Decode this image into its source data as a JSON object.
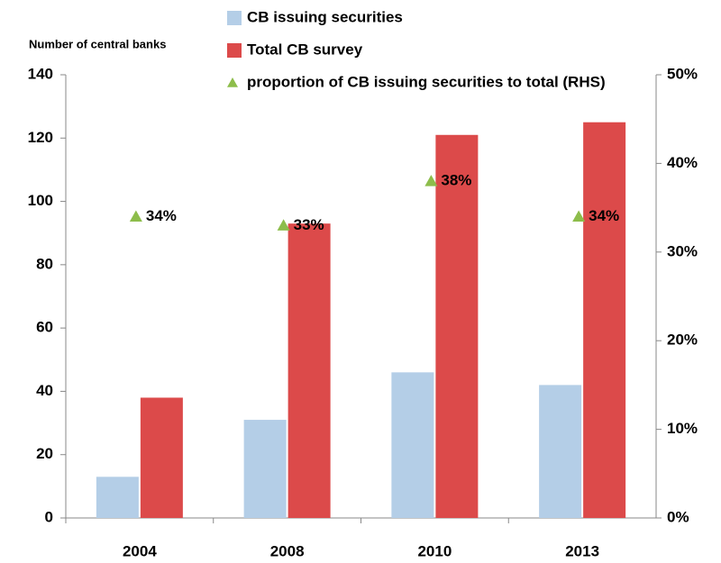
{
  "chart_data": {
    "type": "bar",
    "y_label": "Number of central banks",
    "categories": [
      "2004",
      "2008",
      "2010",
      "2013"
    ],
    "series": [
      {
        "name": "CB issuing securities",
        "color": "#b4cee7",
        "values": [
          13,
          31,
          46,
          42
        ]
      },
      {
        "name": "Total CB survey",
        "color": "#dc4a4a",
        "values": [
          38,
          93,
          121,
          125
        ]
      },
      {
        "name": "proportion of CB issuing securities to total (RHS)",
        "color": "#8dbd4b",
        "type": "scatter",
        "axis": "y2",
        "values": [
          34,
          33,
          38,
          34
        ],
        "value_labels": [
          "34%",
          "33%",
          "38%",
          "34%"
        ]
      }
    ],
    "ylim": [
      0,
      140
    ],
    "yticks": [
      0,
      20,
      40,
      60,
      80,
      100,
      120,
      140
    ],
    "y2lim": [
      0,
      50
    ],
    "y2ticks": [
      {
        "value": 0,
        "label": "0%"
      },
      {
        "value": 10,
        "label": "10%"
      },
      {
        "value": 20,
        "label": "20%"
      },
      {
        "value": 30,
        "label": "30%"
      },
      {
        "value": 40,
        "label": "40%"
      },
      {
        "value": 50,
        "label": "50%"
      }
    ]
  }
}
